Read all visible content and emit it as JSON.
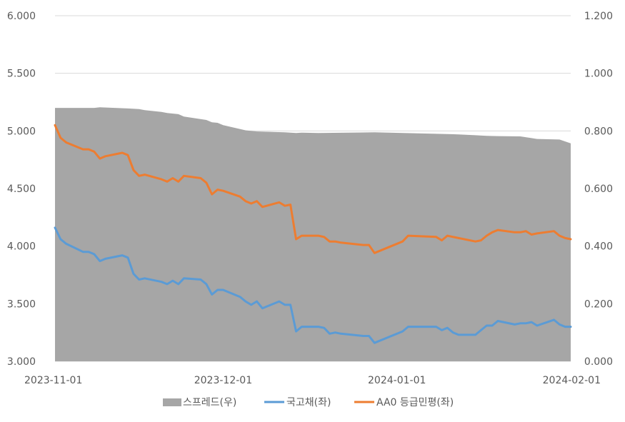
{
  "chart_data": {
    "type": "line",
    "x_range": [
      "2023-11-01",
      "2024-02-01"
    ],
    "x_ticks": [
      "2023-11-01",
      "2023-12-01",
      "2024-01-01",
      "2024-02-01"
    ],
    "y_left": {
      "range": [
        3.0,
        6.0
      ],
      "ticks": [
        "3.000",
        "3.500",
        "4.000",
        "4.500",
        "5.000",
        "5.500",
        "6.000"
      ]
    },
    "y_right": {
      "range": [
        0.0,
        1.2
      ],
      "ticks": [
        "0.000",
        "0.200",
        "0.400",
        "0.600",
        "0.800",
        "1.000",
        "1.200"
      ]
    },
    "grid": "horizontal",
    "legend_position": "bottom",
    "colors": {
      "spread": "#a6a6a6",
      "treasury": "#5b9bd5",
      "aa0": "#ed7d31",
      "grid": "#d9d9d9",
      "text": "#595959"
    },
    "series": [
      {
        "name": "스프레드(우)",
        "axis": "right",
        "kind": "area",
        "x": [
          "2023-11-01",
          "2023-11-08",
          "2023-11-09",
          "2023-11-14",
          "2023-11-16",
          "2023-11-17",
          "2023-11-20",
          "2023-11-21",
          "2023-11-23",
          "2023-11-24",
          "2023-11-28",
          "2023-11-29",
          "2023-11-30",
          "2023-12-01",
          "2023-12-05",
          "2023-12-07",
          "2023-12-12",
          "2023-12-13",
          "2023-12-14",
          "2023-12-15",
          "2023-12-18",
          "2023-12-28",
          "2024-01-08",
          "2024-01-10",
          "2024-01-12",
          "2024-01-15",
          "2024-01-17",
          "2024-01-19",
          "2024-01-23",
          "2024-01-25",
          "2024-01-26",
          "2024-01-30",
          "2024-02-01"
        ],
        "values": [
          0.88,
          0.88,
          0.882,
          0.878,
          0.876,
          0.872,
          0.866,
          0.862,
          0.858,
          0.85,
          0.838,
          0.83,
          0.828,
          0.82,
          0.802,
          0.798,
          0.795,
          0.794,
          0.793,
          0.794,
          0.793,
          0.795,
          0.79,
          0.789,
          0.788,
          0.785,
          0.783,
          0.782,
          0.781,
          0.775,
          0.772,
          0.77,
          0.757
        ]
      },
      {
        "name": "국고채(좌)",
        "axis": "left",
        "kind": "line",
        "x": [
          "2023-11-01",
          "2023-11-02",
          "2023-11-03",
          "2023-11-06",
          "2023-11-07",
          "2023-11-08",
          "2023-11-09",
          "2023-11-10",
          "2023-11-13",
          "2023-11-14",
          "2023-11-15",
          "2023-11-16",
          "2023-11-17",
          "2023-11-20",
          "2023-11-21",
          "2023-11-22",
          "2023-11-23",
          "2023-11-24",
          "2023-11-27",
          "2023-11-28",
          "2023-11-29",
          "2023-11-30",
          "2023-12-01",
          "2023-12-04",
          "2023-12-05",
          "2023-12-06",
          "2023-12-07",
          "2023-12-08",
          "2023-12-11",
          "2023-12-12",
          "2023-12-13",
          "2023-12-14",
          "2023-12-15",
          "2023-12-18",
          "2023-12-19",
          "2023-12-20",
          "2023-12-21",
          "2023-12-22",
          "2023-12-26",
          "2023-12-27",
          "2023-12-28",
          "2024-01-02",
          "2024-01-03",
          "2024-01-08",
          "2024-01-09",
          "2024-01-10",
          "2024-01-11",
          "2024-01-12",
          "2024-01-15",
          "2024-01-16",
          "2024-01-17",
          "2024-01-18",
          "2024-01-19",
          "2024-01-22",
          "2024-01-23",
          "2024-01-24",
          "2024-01-25",
          "2024-01-26",
          "2024-01-29",
          "2024-01-30",
          "2024-01-31",
          "2024-02-01"
        ],
        "values": [
          4.16,
          4.06,
          4.02,
          3.95,
          3.95,
          3.93,
          3.87,
          3.89,
          3.92,
          3.9,
          3.76,
          3.71,
          3.72,
          3.69,
          3.67,
          3.7,
          3.67,
          3.72,
          3.71,
          3.67,
          3.58,
          3.62,
          3.62,
          3.56,
          3.52,
          3.49,
          3.52,
          3.46,
          3.52,
          3.49,
          3.49,
          3.26,
          3.3,
          3.3,
          3.29,
          3.24,
          3.25,
          3.24,
          3.22,
          3.22,
          3.16,
          3.26,
          3.3,
          3.3,
          3.27,
          3.29,
          3.25,
          3.23,
          3.23,
          3.27,
          3.31,
          3.31,
          3.35,
          3.32,
          3.33,
          3.33,
          3.34,
          3.31,
          3.36,
          3.32,
          3.3,
          3.3
        ]
      },
      {
        "name": "AA0 등급민평(좌)",
        "axis": "left",
        "kind": "line",
        "x": [
          "2023-11-01",
          "2023-11-02",
          "2023-11-03",
          "2023-11-06",
          "2023-11-07",
          "2023-11-08",
          "2023-11-09",
          "2023-11-10",
          "2023-11-13",
          "2023-11-14",
          "2023-11-15",
          "2023-11-16",
          "2023-11-17",
          "2023-11-20",
          "2023-11-21",
          "2023-11-22",
          "2023-11-23",
          "2023-11-24",
          "2023-11-27",
          "2023-11-28",
          "2023-11-29",
          "2023-11-30",
          "2023-12-01",
          "2023-12-04",
          "2023-12-05",
          "2023-12-06",
          "2023-12-07",
          "2023-12-08",
          "2023-12-11",
          "2023-12-12",
          "2023-12-13",
          "2023-12-14",
          "2023-12-15",
          "2023-12-18",
          "2023-12-19",
          "2023-12-20",
          "2023-12-21",
          "2023-12-22",
          "2023-12-26",
          "2023-12-27",
          "2023-12-28",
          "2024-01-02",
          "2024-01-03",
          "2024-01-08",
          "2024-01-09",
          "2024-01-10",
          "2024-01-11",
          "2024-01-12",
          "2024-01-15",
          "2024-01-16",
          "2024-01-17",
          "2024-01-18",
          "2024-01-19",
          "2024-01-22",
          "2024-01-23",
          "2024-01-24",
          "2024-01-25",
          "2024-01-26",
          "2024-01-29",
          "2024-01-30",
          "2024-01-31",
          "2024-02-01"
        ],
        "values": [
          5.05,
          4.94,
          4.9,
          4.84,
          4.84,
          4.82,
          4.76,
          4.78,
          4.81,
          4.79,
          4.66,
          4.61,
          4.62,
          4.58,
          4.56,
          4.59,
          4.56,
          4.61,
          4.59,
          4.55,
          4.45,
          4.49,
          4.48,
          4.43,
          4.39,
          4.37,
          4.39,
          4.34,
          4.38,
          4.35,
          4.36,
          4.06,
          4.09,
          4.09,
          4.08,
          4.04,
          4.04,
          4.03,
          4.01,
          4.01,
          3.94,
          4.04,
          4.09,
          4.08,
          4.05,
          4.09,
          4.08,
          4.07,
          4.04,
          4.05,
          4.09,
          4.12,
          4.14,
          4.12,
          4.12,
          4.13,
          4.1,
          4.11,
          4.13,
          4.09,
          4.07,
          4.06
        ]
      }
    ]
  }
}
